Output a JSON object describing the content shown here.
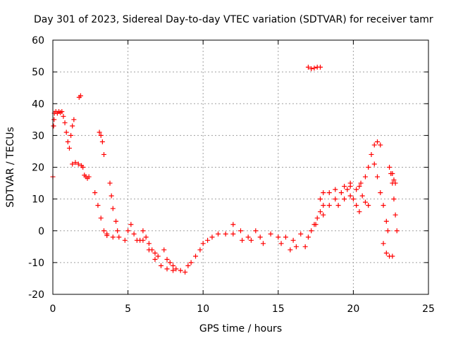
{
  "chart_data": {
    "type": "scatter",
    "title": "Day 301 of 2023, Sidereal Day-to-day VTEC variation (SDTVAR) for receiver tamr",
    "xlabel": "GPS time / hours",
    "ylabel": "SDTVAR / TECUs",
    "xlim": [
      0,
      25
    ],
    "ylim": [
      -20,
      60
    ],
    "xticks": [
      0,
      5,
      10,
      15,
      20,
      25
    ],
    "yticks": [
      -20,
      -10,
      0,
      10,
      20,
      30,
      40,
      50,
      60
    ],
    "grid": true,
    "marker": "+",
    "color": "#ff0000",
    "series": [
      {
        "name": "SDTVAR",
        "points": [
          [
            0.0,
            17
          ],
          [
            0.05,
            33
          ],
          [
            0.08,
            35
          ],
          [
            0.1,
            37
          ],
          [
            0.2,
            37.5
          ],
          [
            0.3,
            37
          ],
          [
            0.4,
            37.5
          ],
          [
            0.5,
            37.2
          ],
          [
            0.6,
            37.5
          ],
          [
            0.7,
            36
          ],
          [
            0.8,
            34
          ],
          [
            0.9,
            31
          ],
          [
            1.0,
            28
          ],
          [
            1.1,
            26
          ],
          [
            1.2,
            30
          ],
          [
            1.3,
            33
          ],
          [
            1.4,
            35
          ],
          [
            1.3,
            21
          ],
          [
            1.5,
            21.5
          ],
          [
            1.7,
            21
          ],
          [
            1.9,
            20.5
          ],
          [
            2.0,
            20
          ],
          [
            1.75,
            42
          ],
          [
            1.85,
            42.5
          ],
          [
            2.1,
            17.5
          ],
          [
            2.2,
            17
          ],
          [
            2.3,
            16.5
          ],
          [
            2.4,
            17
          ],
          [
            3.1,
            31
          ],
          [
            3.2,
            30
          ],
          [
            3.3,
            28
          ],
          [
            3.4,
            24
          ],
          [
            2.8,
            12
          ],
          [
            3.0,
            8
          ],
          [
            3.2,
            4
          ],
          [
            3.4,
            0
          ],
          [
            3.6,
            -1
          ],
          [
            3.8,
            15
          ],
          [
            3.9,
            11
          ],
          [
            4.0,
            7
          ],
          [
            4.2,
            3
          ],
          [
            4.3,
            0
          ],
          [
            3.6,
            -1.5
          ],
          [
            4.0,
            -2
          ],
          [
            4.4,
            -2
          ],
          [
            4.8,
            -3
          ],
          [
            5.0,
            0
          ],
          [
            5.2,
            2
          ],
          [
            5.4,
            -1
          ],
          [
            5.6,
            -3
          ],
          [
            5.8,
            -3
          ],
          [
            6.0,
            0
          ],
          [
            6.2,
            -2
          ],
          [
            6.4,
            -4
          ],
          [
            6.6,
            -6
          ],
          [
            6.8,
            -7
          ],
          [
            7.0,
            -8
          ],
          [
            6.0,
            -3
          ],
          [
            6.4,
            -6
          ],
          [
            6.8,
            -9
          ],
          [
            7.2,
            -11
          ],
          [
            7.6,
            -12
          ],
          [
            8.0,
            -12.5
          ],
          [
            7.4,
            -6
          ],
          [
            7.6,
            -9
          ],
          [
            7.8,
            -10
          ],
          [
            8.0,
            -11
          ],
          [
            8.2,
            -12
          ],
          [
            8.5,
            -12.5
          ],
          [
            8.8,
            -13
          ],
          [
            9.0,
            -11
          ],
          [
            9.2,
            -10
          ],
          [
            9.5,
            -8
          ],
          [
            9.8,
            -6
          ],
          [
            10.0,
            -4
          ],
          [
            10.3,
            -3
          ],
          [
            10.6,
            -2
          ],
          [
            11.0,
            -1
          ],
          [
            11.5,
            -1
          ],
          [
            12.0,
            2
          ],
          [
            12.5,
            0
          ],
          [
            13.0,
            -2
          ],
          [
            13.5,
            0
          ],
          [
            12.0,
            -1
          ],
          [
            12.6,
            -3
          ],
          [
            13.2,
            -3
          ],
          [
            13.8,
            -2
          ],
          [
            14.5,
            -1
          ],
          [
            15.0,
            -2
          ],
          [
            15.5,
            -2
          ],
          [
            16.0,
            -3
          ],
          [
            16.5,
            -1
          ],
          [
            14.0,
            -4
          ],
          [
            15.2,
            -4
          ],
          [
            15.8,
            -6
          ],
          [
            16.2,
            -5
          ],
          [
            16.8,
            -5
          ],
          [
            17.0,
            -2
          ],
          [
            17.2,
            0
          ],
          [
            17.4,
            2
          ],
          [
            17.6,
            4
          ],
          [
            17.8,
            6
          ],
          [
            18.0,
            8
          ],
          [
            17.5,
            2
          ],
          [
            18.0,
            5
          ],
          [
            18.4,
            8
          ],
          [
            18.8,
            10
          ],
          [
            19.2,
            12
          ],
          [
            19.6,
            13
          ],
          [
            17.8,
            10
          ],
          [
            18.0,
            12
          ],
          [
            18.4,
            12
          ],
          [
            18.8,
            13
          ],
          [
            19.4,
            14
          ],
          [
            19.8,
            15
          ],
          [
            19.0,
            8
          ],
          [
            19.4,
            10
          ],
          [
            19.8,
            11
          ],
          [
            20.2,
            13
          ],
          [
            20.5,
            15
          ],
          [
            20.8,
            17
          ],
          [
            19.8,
            14
          ],
          [
            20.0,
            10
          ],
          [
            20.2,
            8
          ],
          [
            20.4,
            6
          ],
          [
            20.4,
            14
          ],
          [
            20.6,
            11
          ],
          [
            20.8,
            9
          ],
          [
            21.0,
            8
          ],
          [
            21.0,
            20
          ],
          [
            21.2,
            24
          ],
          [
            21.4,
            27
          ],
          [
            21.6,
            28
          ],
          [
            21.8,
            27
          ],
          [
            21.4,
            21
          ],
          [
            21.6,
            17
          ],
          [
            21.8,
            12
          ],
          [
            22.0,
            8
          ],
          [
            22.2,
            3
          ],
          [
            22.3,
            0
          ],
          [
            22.0,
            -4
          ],
          [
            22.2,
            -7
          ],
          [
            22.4,
            -8
          ],
          [
            22.6,
            -8
          ],
          [
            22.4,
            20
          ],
          [
            22.5,
            18
          ],
          [
            22.6,
            15
          ],
          [
            22.7,
            10
          ],
          [
            22.8,
            5
          ],
          [
            22.9,
            0
          ],
          [
            22.6,
            18
          ],
          [
            22.7,
            16
          ],
          [
            22.8,
            15
          ],
          [
            17.0,
            51.5
          ],
          [
            17.2,
            51
          ],
          [
            17.4,
            51.2
          ],
          [
            17.6,
            51.5
          ],
          [
            17.8,
            51.5
          ]
        ]
      }
    ]
  }
}
